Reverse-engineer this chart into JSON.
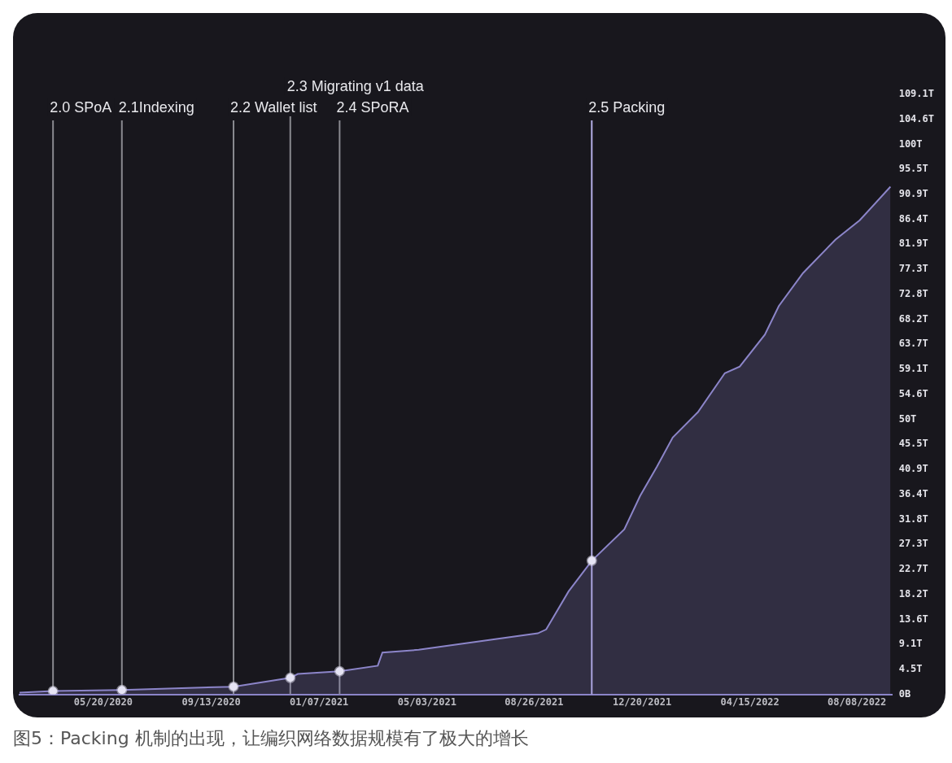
{
  "chart_data": {
    "type": "area",
    "series": [
      {
        "color": "#8c85c9",
        "x": [
          "2020-02-20",
          "2020-03-27",
          "2020-06-09",
          "2020-10-07",
          "2020-12-07",
          "2020-12-15",
          "2021-01-29",
          "2021-03-11",
          "2021-03-16",
          "2021-04-24",
          "2021-08-30",
          "2021-09-08",
          "2021-10-02",
          "2021-10-27",
          "2021-12-01",
          "2021-12-18",
          "2022-01-05",
          "2022-01-22",
          "2022-02-18",
          "2022-03-19",
          "2022-04-04",
          "2022-05-01",
          "2022-05-16",
          "2022-06-11",
          "2022-07-16",
          "2022-08-11",
          "2022-09-13"
        ],
        "values": [
          0.3,
          0.6,
          0.8,
          1.4,
          3.0,
          3.7,
          4.2,
          5.2,
          7.6,
          8.1,
          11.1,
          11.8,
          18.7,
          24.3,
          30.0,
          36.1,
          41.4,
          46.7,
          51.3,
          58.4,
          59.6,
          65.4,
          70.6,
          76.6,
          82.7,
          86.2,
          92.3
        ]
      },
      {
        "type": "scatter",
        "color": "#e6e4f4",
        "x": [
          "2020-03-27",
          "2020-06-09",
          "2020-10-07",
          "2020-12-07",
          "2021-01-29",
          "2021-10-27"
        ],
        "values": [
          0.6,
          0.8,
          1.4,
          3.0,
          4.2,
          24.3
        ]
      }
    ],
    "xlim": [
      "2020-02-20",
      "2022-09-15"
    ],
    "xticks": [
      {
        "value": "2020-05-20",
        "label": "05/20/2020"
      },
      {
        "value": "2020-09-13",
        "label": "09/13/2020"
      },
      {
        "value": "2021-01-07",
        "label": "01/07/2021"
      },
      {
        "value": "2021-05-03",
        "label": "05/03/2021"
      },
      {
        "value": "2021-08-26",
        "label": "08/26/2021"
      },
      {
        "value": "2021-12-20",
        "label": "12/20/2021"
      },
      {
        "value": "2022-04-15",
        "label": "04/15/2022"
      },
      {
        "value": "2022-08-08",
        "label": "08/08/2022"
      }
    ],
    "ylim": [
      0,
      109.091
    ],
    "yticks": [
      {
        "value": 0,
        "label": "0B"
      },
      {
        "value": 4.545,
        "label": "4.5T"
      },
      {
        "value": 9.091,
        "label": "9.1T"
      },
      {
        "value": 13.636,
        "label": "13.6T"
      },
      {
        "value": 18.182,
        "label": "18.2T"
      },
      {
        "value": 22.727,
        "label": "22.7T"
      },
      {
        "value": 27.273,
        "label": "27.3T"
      },
      {
        "value": 31.818,
        "label": "31.8T"
      },
      {
        "value": 36.364,
        "label": "36.4T"
      },
      {
        "value": 40.909,
        "label": "40.9T"
      },
      {
        "value": 45.455,
        "label": "45.5T"
      },
      {
        "value": 50,
        "label": "50T"
      },
      {
        "value": 54.56,
        "label": "54.6T"
      },
      {
        "value": 59.091,
        "label": "59.1T"
      },
      {
        "value": 63.66,
        "label": "63.7T"
      },
      {
        "value": 68.182,
        "label": "68.2T"
      },
      {
        "value": 72.76,
        "label": "72.8T"
      },
      {
        "value": 77.273,
        "label": "77.3T"
      },
      {
        "value": 81.86,
        "label": "81.9T"
      },
      {
        "value": 86.364,
        "label": "86.4T"
      },
      {
        "value": 90.909,
        "label": "90.9T"
      },
      {
        "value": 95.455,
        "label": "95.5T"
      },
      {
        "value": 100,
        "label": "100T"
      },
      {
        "value": 104.56,
        "label": "104.6T"
      },
      {
        "value": 109.091,
        "label": "109.1T"
      }
    ],
    "ref_lines": [
      {
        "axis": "x",
        "value": "2020-03-27",
        "label": "2.0 SPoA",
        "color": "#8a8a90"
      },
      {
        "axis": "x",
        "value": "2020-06-09",
        "label": "2.1Indexing",
        "color": "#8a8a90"
      },
      {
        "axis": "x",
        "value": "2020-10-07",
        "label": "2.2 Wallet list",
        "color": "#8a8a90"
      },
      {
        "axis": "x",
        "value": "2020-12-07",
        "label": "2.3 Migrating v1 data",
        "color": "#8a8a90"
      },
      {
        "axis": "x",
        "value": "2021-01-29",
        "label": "2.4 SPoRA",
        "color": "#8a8a90"
      },
      {
        "axis": "x",
        "value": "2021-10-27",
        "label": "2.5 Packing",
        "color": "#b4aee6"
      }
    ],
    "annotations": [
      "图5：Packing 机制的出现，让编织网络数据规模有了极大的增长"
    ]
  }
}
